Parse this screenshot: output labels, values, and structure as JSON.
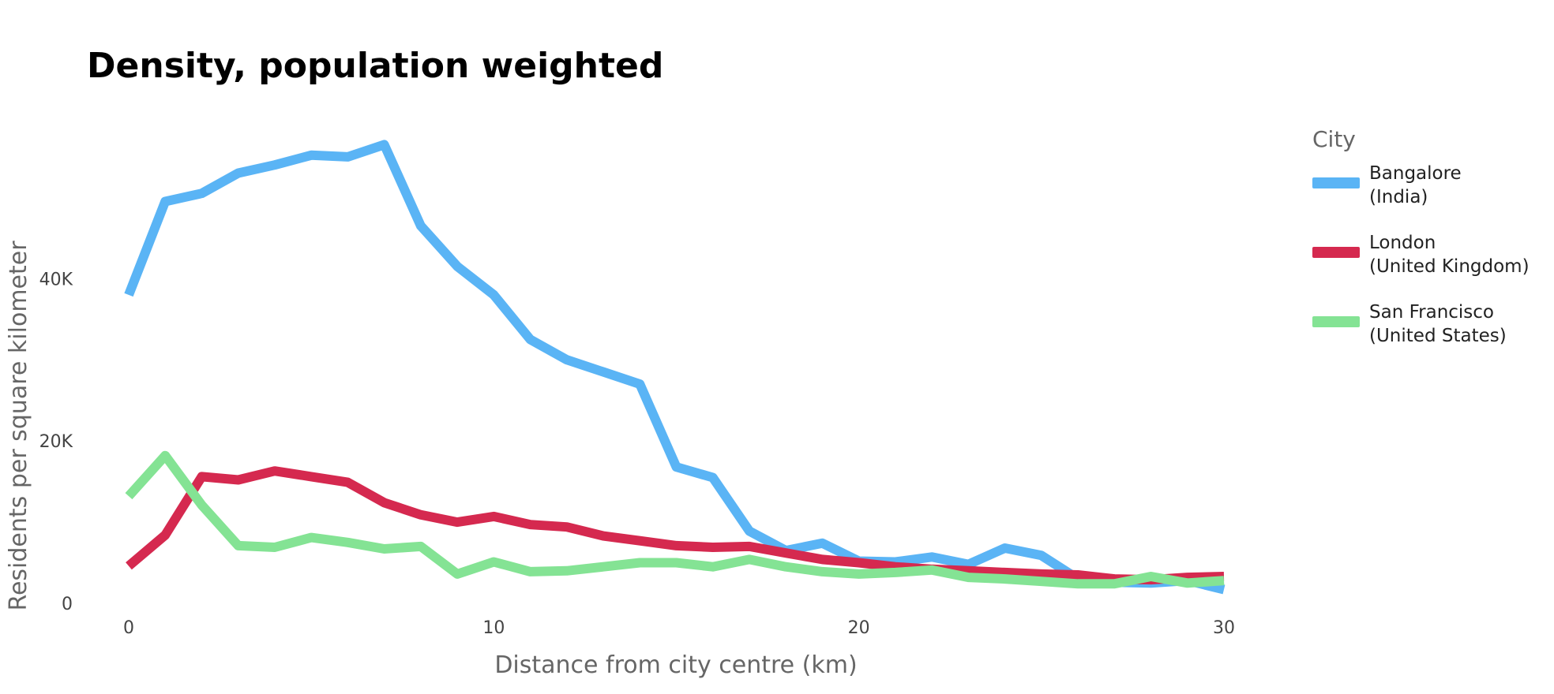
{
  "chart_data": {
    "type": "line",
    "title": "Density, population weighted",
    "xlabel": "Distance from city centre (km)",
    "ylabel": "Residents per square kilometer",
    "xlim": [
      0,
      30
    ],
    "ylim": [
      0,
      58000
    ],
    "xticks": [
      0,
      10,
      20,
      30
    ],
    "xtick_labels": [
      "0",
      "10",
      "20",
      "30"
    ],
    "yticks": [
      0,
      20000,
      40000
    ],
    "ytick_labels": [
      "0",
      "20K",
      "40K"
    ],
    "grid": false,
    "legend_title": "City",
    "legend_position": "right",
    "x": [
      0,
      1,
      2,
      3,
      4,
      5,
      6,
      7,
      8,
      9,
      10,
      11,
      12,
      13,
      14,
      15,
      16,
      17,
      18,
      19,
      20,
      21,
      22,
      23,
      24,
      25,
      26,
      27,
      28,
      29,
      30
    ],
    "series": [
      {
        "name": "Bangalore (India)",
        "name_line1": "Bangalore",
        "name_line2": "(India)",
        "color": "#5AB4F5",
        "values": [
          38000,
          49500,
          50500,
          53000,
          54000,
          55200,
          55000,
          56500,
          46500,
          41500,
          38000,
          32500,
          30000,
          28500,
          27000,
          16800,
          15500,
          8900,
          6500,
          7400,
          5200,
          5100,
          5700,
          4800,
          6800,
          5900,
          3000,
          2600,
          2500,
          2800,
          1700
        ]
      },
      {
        "name": "London (United Kingdom)",
        "name_line1": "London",
        "name_line2": "(United Kingdom)",
        "color": "#D5294F",
        "values": [
          4600,
          8400,
          15600,
          15200,
          16300,
          15600,
          14900,
          12400,
          10900,
          10000,
          10700,
          9700,
          9400,
          8300,
          7700,
          7100,
          6900,
          7000,
          6200,
          5400,
          5000,
          4500,
          4200,
          4000,
          3800,
          3600,
          3500,
          3000,
          2900,
          3200,
          3300
        ]
      },
      {
        "name": "San Francisco (United States)",
        "name_line1": "San Francisco",
        "name_line2": "(United States)",
        "color": "#84E394",
        "values": [
          13200,
          18200,
          12100,
          7100,
          6900,
          8100,
          7500,
          6700,
          7000,
          3600,
          5100,
          3900,
          4000,
          4500,
          5000,
          5000,
          4500,
          5400,
          4500,
          3900,
          3600,
          3800,
          4100,
          3200,
          3000,
          2700,
          2400,
          2400,
          3300,
          2500,
          2800
        ]
      }
    ]
  }
}
